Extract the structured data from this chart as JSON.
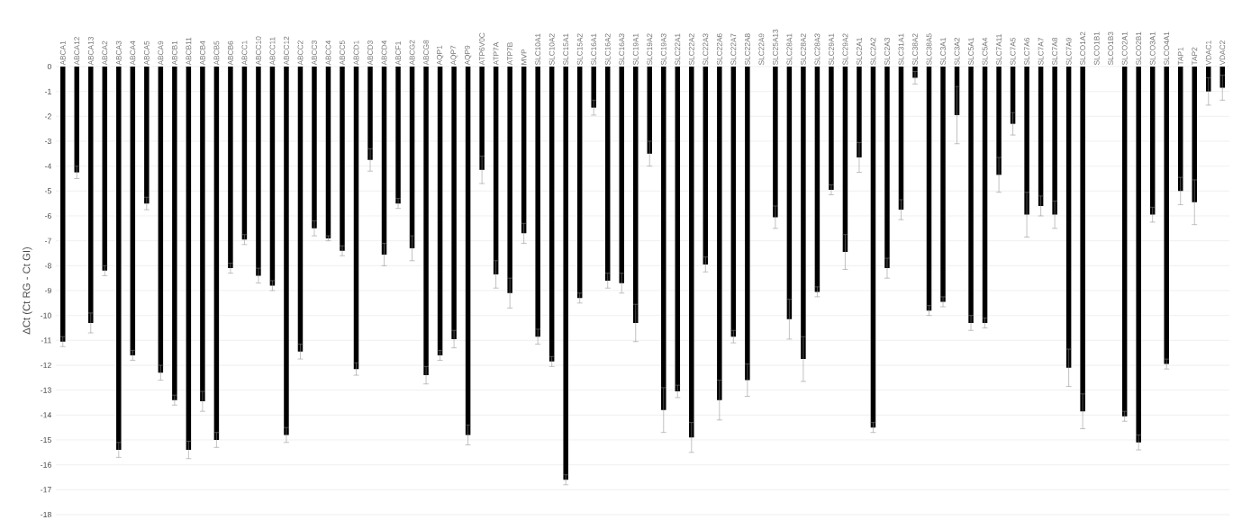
{
  "chart_data": {
    "type": "bar",
    "ylabel": "ΔCt (Ct RG - Ct GI)",
    "categories": [
      "ABCA1",
      "ABCA12",
      "ABCA13",
      "ABCA2",
      "ABCA3",
      "ABCA4",
      "ABCA5",
      "ABCA9",
      "ABCB1",
      "ABCB11",
      "ABCB4",
      "ABCB5",
      "ABCB6",
      "ABCC1",
      "ABCC10",
      "ABCC11",
      "ABCC12",
      "ABCC2",
      "ABCC3",
      "ABCC4",
      "ABCC5",
      "ABCD1",
      "ABCD3",
      "ABCD4",
      "ABCF1",
      "ABCG2",
      "ABCG8",
      "AQP1",
      "AQP7",
      "AQP9",
      "ATP6V0C",
      "ATP7A",
      "ATP7B",
      "MVP",
      "SLC10A1",
      "SLC10A2",
      "SLC15A1",
      "SLC15A2",
      "SLC16A1",
      "SLC16A2",
      "SLC16A3",
      "SLC19A1",
      "SLC19A2",
      "SLC19A3",
      "SLC22A1",
      "SLC22A2",
      "SLC22A3",
      "SLC22A6",
      "SLC22A7",
      "SLC22A8",
      "SLC22A9",
      "SLC25A13",
      "SLC28A1",
      "SLC28A2",
      "SLC28A3",
      "SLC29A1",
      "SLC29A2",
      "SLC2A1",
      "SLC2A2",
      "SLC2A3",
      "SLC31A1",
      "SLC38A2",
      "SLC38A5",
      "SLC3A1",
      "SLC3A2",
      "SLC5A1",
      "SLC5A4",
      "SLC7A11",
      "SLC7A5",
      "SLC7A6",
      "SLC7A7",
      "SLC7A8",
      "SLC7A9",
      "SLCO1A2",
      "SLCO1B1",
      "SLCO1B3",
      "SLCO2A1",
      "SLCO2B1",
      "SLCO3A1",
      "SLCO4A1",
      "TAP1",
      "TAP2",
      "VDAC1",
      "VDAC2"
    ],
    "values": [
      -11.05,
      -4.25,
      -10.3,
      -8.2,
      -15.4,
      -11.6,
      -5.5,
      -12.3,
      -13.4,
      -15.4,
      -13.45,
      -15.0,
      -8.1,
      -6.95,
      -8.4,
      -8.8,
      -14.8,
      -11.45,
      -6.5,
      -6.9,
      -7.4,
      -12.15,
      -3.75,
      -7.55,
      -5.5,
      -7.3,
      -12.4,
      -11.6,
      -10.95,
      -14.8,
      -4.15,
      -8.35,
      -9.1,
      -6.7,
      -10.85,
      -11.85,
      -16.6,
      -9.3,
      -1.65,
      -8.6,
      -8.7,
      -10.3,
      -3.5,
      -13.8,
      -13.05,
      -14.9,
      -7.95,
      -13.4,
      -10.85,
      -12.6,
      null,
      -6.05,
      -10.15,
      -11.75,
      -9.05,
      -4.95,
      -7.45,
      -3.65,
      -14.5,
      -8.1,
      -5.75,
      -0.45,
      -9.8,
      -9.45,
      -1.95,
      -10.3,
      -10.3,
      -4.35,
      -2.3,
      -5.95,
      -5.6,
      -5.95,
      -12.1,
      -13.85,
      null,
      null,
      -14.05,
      -15.1,
      -5.95,
      -11.95,
      -5.0,
      -5.45,
      -1.0,
      -0.85
    ],
    "errors": [
      0.2,
      0.25,
      0.4,
      0.2,
      0.3,
      0.2,
      0.25,
      0.3,
      0.2,
      0.35,
      0.4,
      0.3,
      0.2,
      0.2,
      0.3,
      0.2,
      0.3,
      0.3,
      0.3,
      0.1,
      0.2,
      0.25,
      0.45,
      0.45,
      0.2,
      0.5,
      0.35,
      0.2,
      0.35,
      0.4,
      0.55,
      0.55,
      0.6,
      0.4,
      0.3,
      0.2,
      0.2,
      0.2,
      0.3,
      0.3,
      0.4,
      0.75,
      0.5,
      0.9,
      0.25,
      0.6,
      0.3,
      0.8,
      0.25,
      0.65,
      null,
      0.45,
      0.8,
      0.9,
      0.2,
      0.2,
      0.7,
      0.6,
      0.2,
      0.4,
      0.4,
      0.25,
      0.2,
      0.2,
      1.15,
      0.3,
      0.2,
      0.7,
      0.45,
      0.9,
      0.4,
      0.55,
      0.75,
      0.7,
      null,
      null,
      0.2,
      0.3,
      0.3,
      0.2,
      0.55,
      0.9,
      0.55,
      0.5
    ],
    "color": "#000000",
    "ylim": [
      -18,
      0
    ],
    "yticks": [
      -18,
      -17,
      -16,
      -15,
      -14,
      -13,
      -12,
      -11,
      -10,
      -9,
      -8,
      -7,
      -6,
      -5,
      -4,
      -3,
      -2,
      -1,
      0
    ],
    "grid": "y"
  }
}
